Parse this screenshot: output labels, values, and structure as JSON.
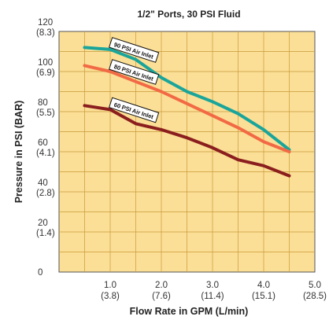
{
  "chart_data": {
    "type": "line",
    "title": "1/2\" Ports, 30 PSI Fluid",
    "xlabel": "Flow Rate in GPM (L/min)",
    "ylabel": "Pressure in PSI (BAR)",
    "xlim": [
      0,
      5
    ],
    "ylim": [
      0,
      120
    ],
    "grid": true,
    "x_ticks": [
      {
        "value": 1,
        "label": "1.0",
        "sublabel": "(3.8)"
      },
      {
        "value": 2,
        "label": "2.0",
        "sublabel": "(7.6)"
      },
      {
        "value": 3,
        "label": "3.0",
        "sublabel": "(11.4)"
      },
      {
        "value": 4,
        "label": "4.0",
        "sublabel": "(15.1)"
      },
      {
        "value": 5,
        "label": "5.0",
        "sublabel": "(28.5)"
      }
    ],
    "y_ticks": [
      {
        "value": 0,
        "label": "0",
        "sublabel": ""
      },
      {
        "value": 20,
        "label": "20",
        "sublabel": "(1.4)"
      },
      {
        "value": 40,
        "label": "40",
        "sublabel": "(2.8)"
      },
      {
        "value": 60,
        "label": "60",
        "sublabel": "(4.1)"
      },
      {
        "value": 80,
        "label": "80",
        "sublabel": "(5.5)"
      },
      {
        "value": 100,
        "label": "100",
        "sublabel": "(6.9)"
      },
      {
        "value": 120,
        "label": "120",
        "sublabel": "(8.3)"
      }
    ],
    "series": [
      {
        "name": "90 PSI Air Inlet",
        "color": "#1aa59a",
        "points": [
          [
            0.5,
            112
          ],
          [
            1.0,
            111
          ],
          [
            1.5,
            106
          ],
          [
            2.0,
            97
          ],
          [
            2.5,
            90
          ],
          [
            3.0,
            85
          ],
          [
            3.5,
            79
          ],
          [
            4.0,
            71
          ],
          [
            4.5,
            61
          ]
        ]
      },
      {
        "name": "80 PSI Air Inlet",
        "color": "#f26a45",
        "points": [
          [
            0.5,
            103
          ],
          [
            1.0,
            100
          ],
          [
            1.5,
            95
          ],
          [
            2.0,
            90
          ],
          [
            2.5,
            84
          ],
          [
            3.0,
            78
          ],
          [
            3.5,
            72
          ],
          [
            4.0,
            65
          ],
          [
            4.5,
            60
          ]
        ]
      },
      {
        "name": "60 PSI Air Inlet",
        "color": "#8b1e1e",
        "points": [
          [
            0.5,
            83
          ],
          [
            1.0,
            81
          ],
          [
            1.5,
            74
          ],
          [
            2.0,
            71
          ],
          [
            2.5,
            67
          ],
          [
            3.0,
            62
          ],
          [
            3.5,
            56
          ],
          [
            4.0,
            53
          ],
          [
            4.5,
            48
          ]
        ]
      }
    ]
  }
}
